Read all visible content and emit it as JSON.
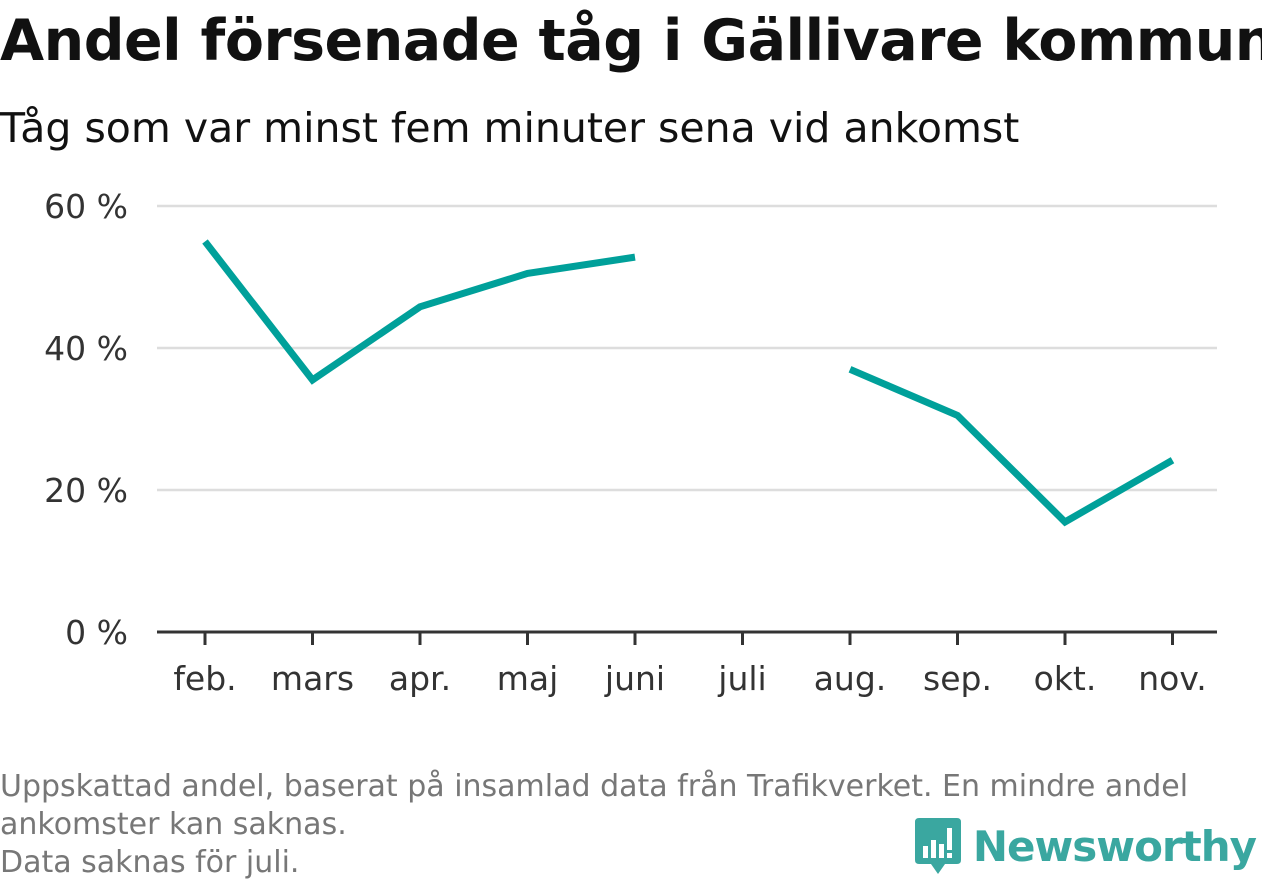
{
  "title": "Andel försenade tåg i Gällivare kommun",
  "subtitle": "Tåg som var minst fem minuter sena vid ankomst",
  "footnote": [
    "Uppskattad andel, baserat på insamlad data från Trafikverket. En mindre andel",
    "ankomster kan saknas.",
    "Data saknas för juli."
  ],
  "brand": {
    "name": "Newsworthy",
    "color": "#3aa7a0",
    "icon": "newsworthy-logo-icon"
  },
  "chart_data": {
    "type": "line",
    "categories": [
      "feb.",
      "mars",
      "apr.",
      "maj",
      "juni",
      "juli",
      "aug.",
      "sep.",
      "okt.",
      "nov."
    ],
    "series": [
      {
        "values": [
          55.0,
          35.5,
          45.8,
          50.5,
          52.8,
          null,
          37.0,
          30.5,
          15.5,
          24.2
        ],
        "color": "#00a09a"
      }
    ],
    "ylim": [
      0,
      60
    ],
    "yticks": [
      0,
      20,
      40,
      60
    ],
    "ytick_labels": [
      "0 %",
      "20 %",
      "40 %",
      "60 %"
    ],
    "grid": true
  }
}
